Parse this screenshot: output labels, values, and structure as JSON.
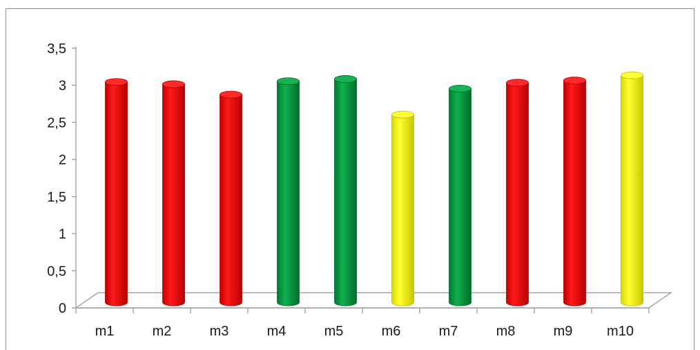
{
  "chart_data": {
    "type": "bar",
    "categories": [
      "m1",
      "m2",
      "m3",
      "m4",
      "m5",
      "m6",
      "m7",
      "m8",
      "m9",
      "m10"
    ],
    "values": [
      2.97,
      2.94,
      2.8,
      2.98,
      3.01,
      2.53,
      2.88,
      2.96,
      2.99,
      3.06
    ],
    "colors": [
      "#ff0000",
      "#ff0000",
      "#ff0000",
      "#00a040",
      "#00a040",
      "#ffff00",
      "#00a040",
      "#ff0000",
      "#ff0000",
      "#ffff00"
    ],
    "title": "",
    "xlabel": "",
    "ylabel": "",
    "ylim": [
      0,
      3.5
    ],
    "yticks": [
      "0",
      "0,5",
      "1",
      "1,5",
      "2",
      "2,5",
      "3",
      "3,5"
    ],
    "grid": false,
    "style": "3d-cylinder"
  }
}
